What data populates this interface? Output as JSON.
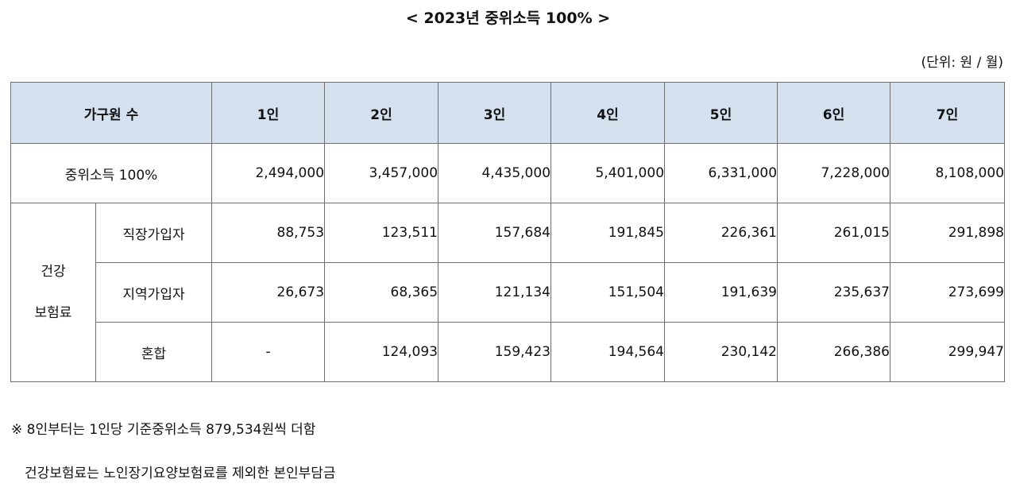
{
  "title": "< 2023년 중위소득 100% >",
  "unit": "(단위: 원 / 월)",
  "table": {
    "header": {
      "household": "가구원 수",
      "cols": [
        "1인",
        "2인",
        "3인",
        "4인",
        "5인",
        "6인",
        "7인"
      ]
    },
    "median_row": {
      "label": "중위소득 100%",
      "values": [
        "2,494,000",
        "3,457,000",
        "4,435,000",
        "5,401,000",
        "6,331,000",
        "7,228,000",
        "8,108,000"
      ]
    },
    "health": {
      "label_line1": "건강",
      "label_line2": "보험료",
      "rows": [
        {
          "label": "직장가입자",
          "values": [
            "88,753",
            "123,511",
            "157,684",
            "191,845",
            "226,361",
            "261,015",
            "291,898"
          ]
        },
        {
          "label": "지역가입자",
          "values": [
            "26,673",
            "68,365",
            "121,134",
            "151,504",
            "191,639",
            "235,637",
            "273,699"
          ]
        },
        {
          "label": "혼합",
          "values": [
            "-",
            "124,093",
            "159,423",
            "194,564",
            "230,142",
            "266,386",
            "299,947"
          ]
        }
      ]
    }
  },
  "notes": {
    "line1": "※ 8인부터는 1인당 기준중위소득 879,534원씩 더함",
    "line2": "건강보험료는 노인장기요양보험료를 제외한 본인부담금"
  }
}
